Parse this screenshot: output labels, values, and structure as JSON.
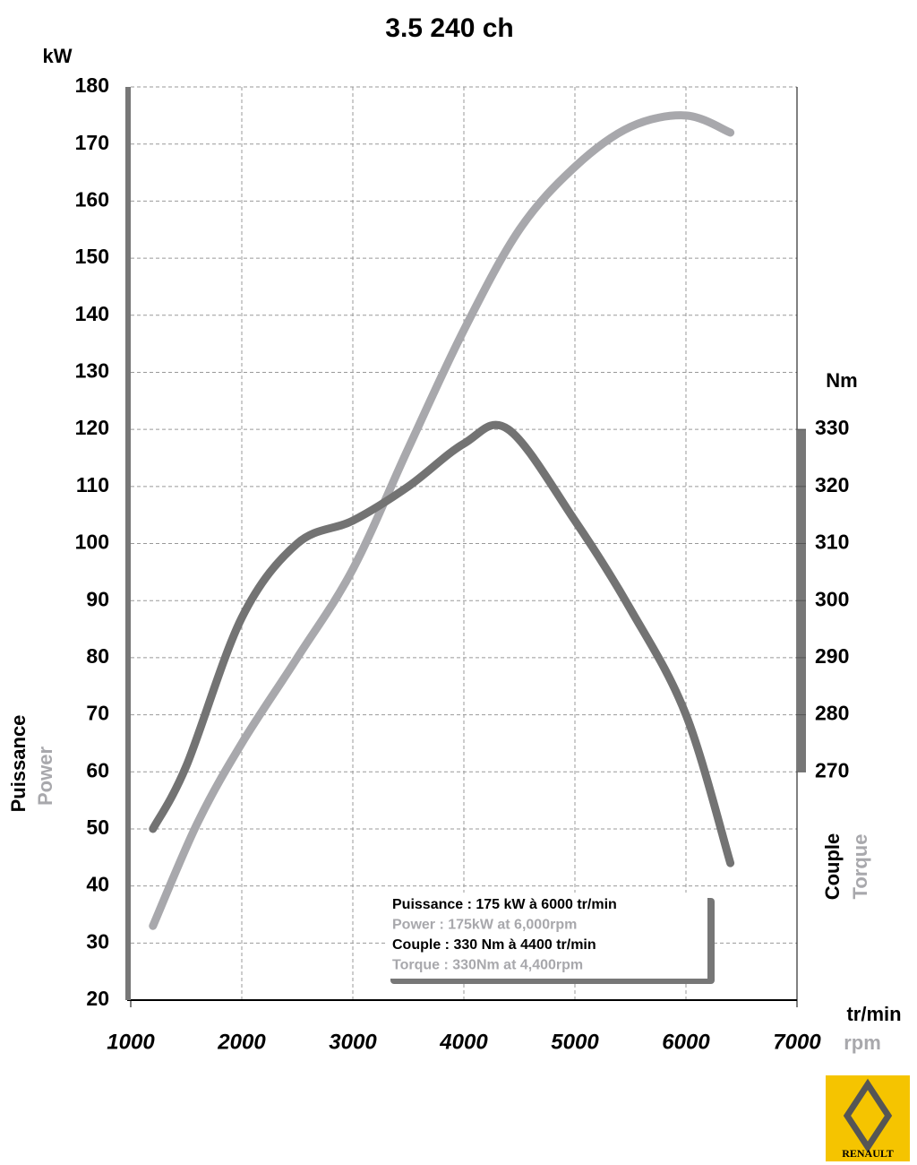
{
  "chart_data": {
    "type": "line",
    "title": "3.5 240 ch",
    "y_unit": "kW",
    "y2_unit": "Nm",
    "x_unit": "tr/min",
    "x_unit_en": "rpm",
    "y_label": "Puissance",
    "y_label_en": "Power",
    "y2_label": "Couple",
    "y2_label_en": "Torque",
    "annotations": [
      "Puissance : 175 kW à 6000 tr/min",
      "Power : 175kW at 6,000rpm",
      "Couple : 330 Nm à 4400 tr/min",
      "Torque : 330Nm at 4,400rpm"
    ],
    "brand": "RENAULT",
    "xlim": [
      1000,
      7000
    ],
    "xticks": [
      1000,
      2000,
      3000,
      4000,
      5000,
      6000,
      7000
    ],
    "ylim": [
      20,
      180
    ],
    "yticks": [
      20,
      30,
      40,
      50,
      60,
      70,
      80,
      90,
      100,
      110,
      120,
      130,
      140,
      150,
      160,
      170,
      180
    ],
    "y2lim": [
      230,
      390
    ],
    "y2ticks": [
      270,
      280,
      290,
      300,
      310,
      320,
      330
    ],
    "grid": true,
    "series": [
      {
        "name": "Power",
        "color": "#a8a8ac",
        "x": [
          1200,
          1600,
          2000,
          2500,
          3000,
          3500,
          4000,
          4500,
          5000,
          5500,
          6000,
          6400
        ],
        "values": [
          33,
          51,
          65,
          80,
          95.5,
          116.7,
          137.4,
          155,
          166,
          173,
          175,
          172
        ]
      },
      {
        "name": "Torque",
        "color": "#737373",
        "axis": "y2",
        "x": [
          1200,
          1500,
          2000,
          2500,
          3000,
          3500,
          4000,
          4400,
          5000,
          5500,
          6000,
          6400
        ],
        "values": [
          260,
          271,
          297,
          310,
          314,
          320,
          327.5,
          330,
          314,
          298.5,
          280,
          254
        ]
      }
    ]
  }
}
